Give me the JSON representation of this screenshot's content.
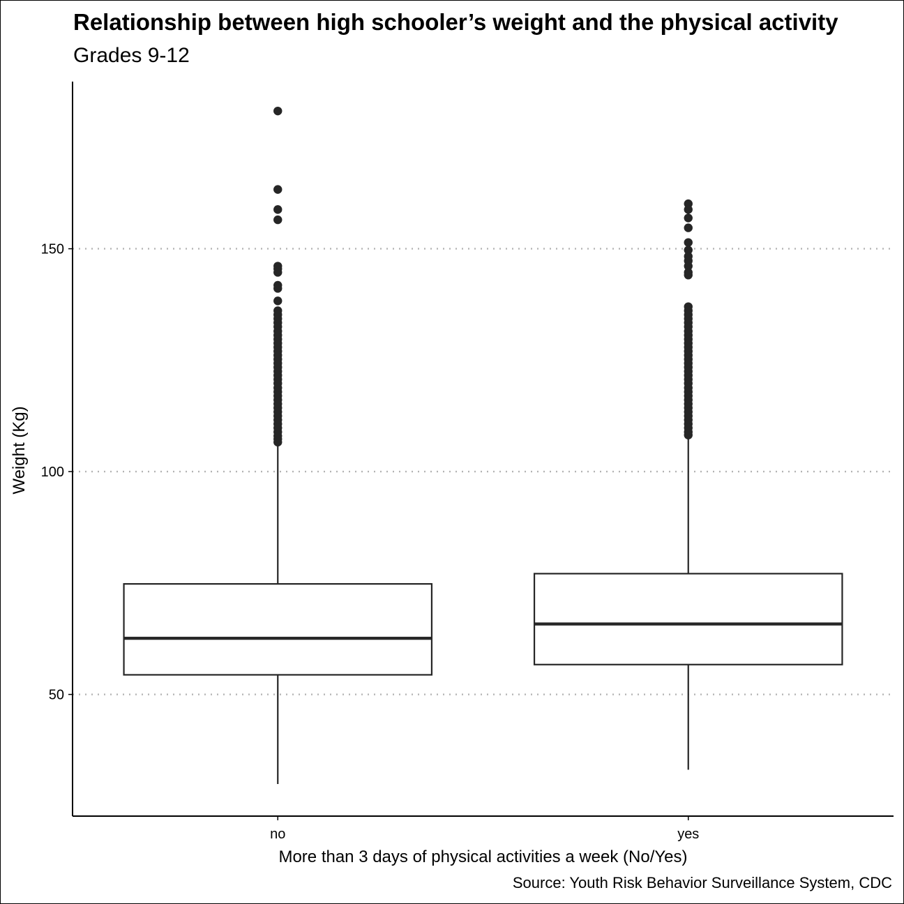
{
  "chart_data": {
    "type": "box",
    "title": "Relationship between high schooler’s weight and the physical activity",
    "subtitle": "Grades 9-12",
    "caption": "Source: Youth Risk Behavior Surveillance System, CDC",
    "xlabel": "More than 3 days of physical activities a week (No/Yes)",
    "ylabel": "Weight (Kg)",
    "ylim": [
      22.7,
      187.5
    ],
    "yticks": [
      50,
      100,
      150
    ],
    "ytick_labels": [
      "50",
      "100",
      "150"
    ],
    "grid": "horizontal dotted",
    "categories": [
      "no",
      "yes"
    ],
    "boxes": [
      {
        "category": "no",
        "min": 29.9,
        "q1": 54.4,
        "median": 62.6,
        "q3": 74.8,
        "max": 106.1,
        "outliers": [
          180.9,
          163.3,
          158.8,
          156.5,
          146.1,
          145.5,
          144.7,
          141.8,
          141.1,
          138.3,
          136.1,
          135.2,
          134.3,
          133.4,
          132.5,
          131.5,
          130.6,
          129.7,
          128.8,
          127.9,
          127.0,
          126.1,
          125.2,
          124.3,
          123.4,
          122.5,
          121.6,
          120.7,
          119.8,
          118.8,
          117.9,
          117.0,
          116.1,
          115.2,
          114.3,
          113.4,
          112.5,
          111.6,
          110.7,
          109.8,
          108.9,
          108.0,
          107.3,
          106.6
        ]
      },
      {
        "category": "yes",
        "min": 33.1,
        "q1": 56.7,
        "median": 65.8,
        "q3": 77.1,
        "max": 108.0,
        "outliers": [
          160.1,
          158.8,
          156.9,
          154.7,
          151.4,
          149.7,
          148.3,
          147.3,
          146.1,
          144.7,
          144.1,
          137.0,
          136.1,
          135.2,
          134.3,
          133.4,
          132.5,
          131.5,
          130.6,
          129.7,
          128.8,
          127.9,
          127.0,
          126.1,
          125.2,
          124.3,
          123.4,
          122.5,
          121.6,
          120.7,
          119.8,
          118.8,
          117.9,
          117.0,
          116.1,
          115.2,
          114.3,
          113.4,
          112.5,
          111.6,
          110.7,
          109.8,
          108.9,
          108.2
        ]
      }
    ]
  },
  "colors": {
    "box_stroke": "#262626",
    "grid": "#b3b3b3",
    "axis": "#000000",
    "points": "#262626"
  }
}
